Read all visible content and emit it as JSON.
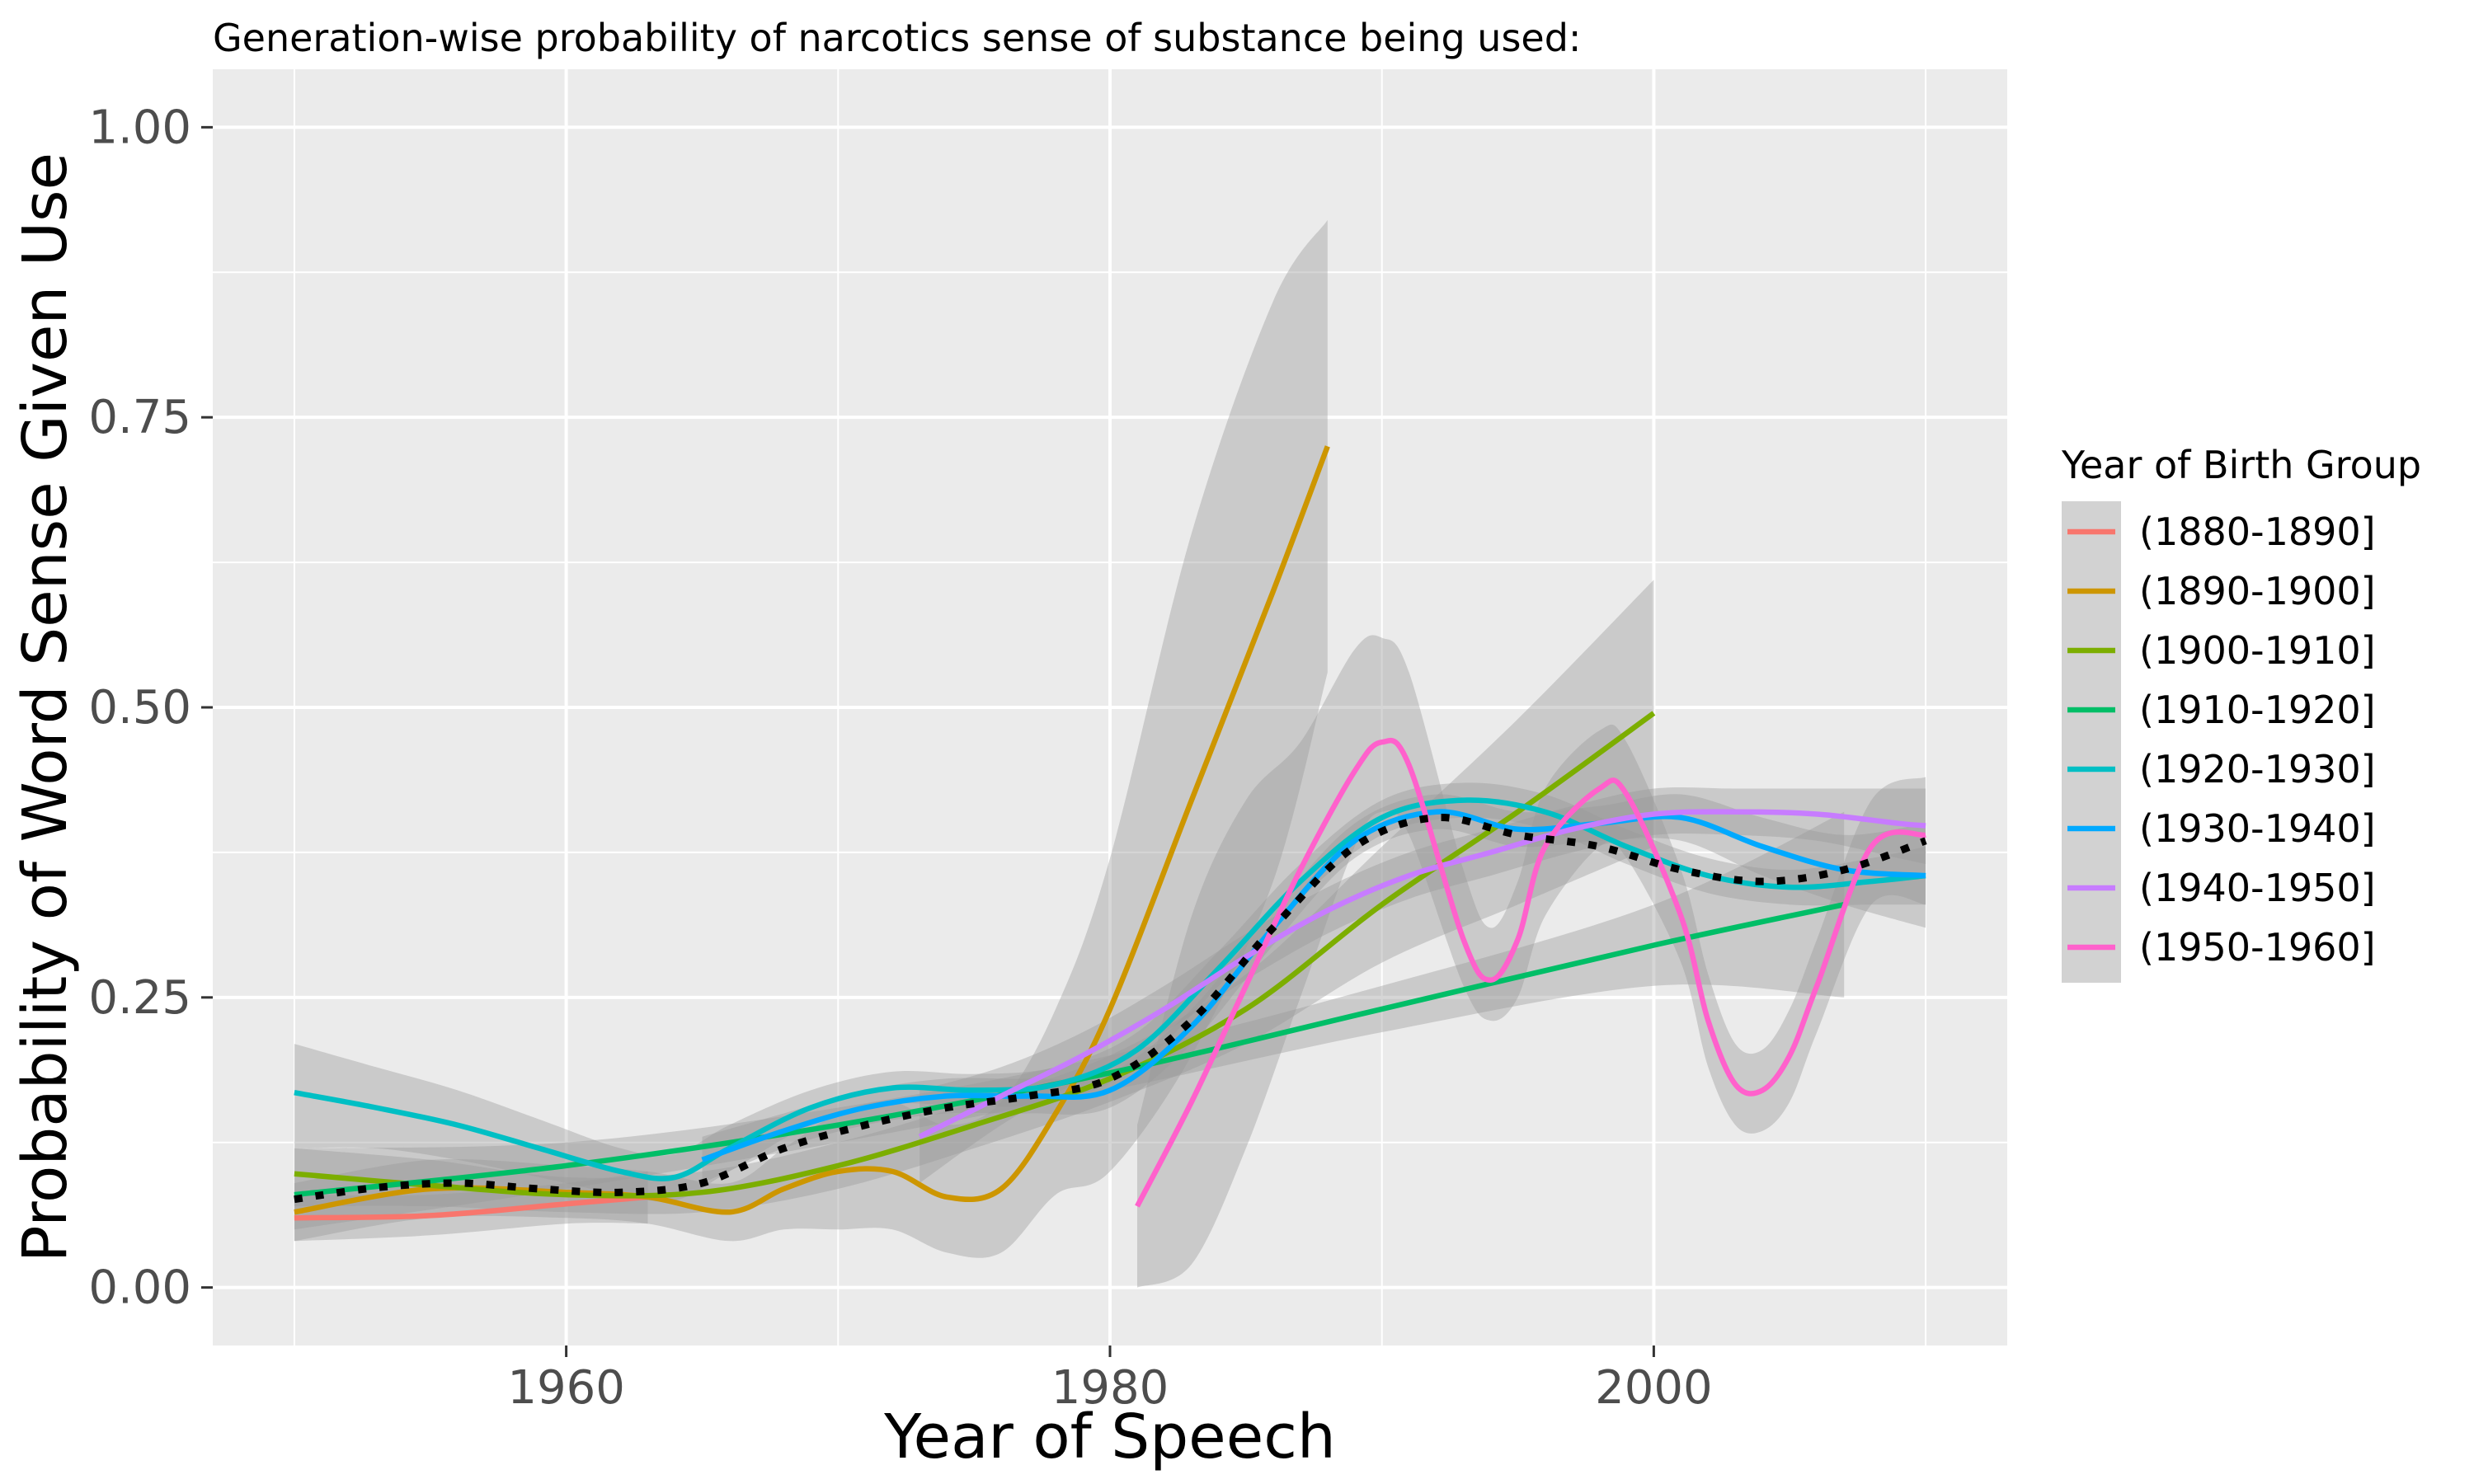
{
  "chart_data": {
    "type": "line",
    "title": "Generation-wise probability of narcotics sense of substance being used:",
    "xlabel": "Year of Speech",
    "ylabel": "Probability of Word Sense Given Use",
    "xlim": [
      1947,
      2013
    ],
    "ylim": [
      -0.05,
      1.05
    ],
    "x_ticks": [
      1960,
      1980,
      2000
    ],
    "x_tick_labels": [
      "1960",
      "1980",
      "2000"
    ],
    "y_ticks": [
      0,
      0.25,
      0.5,
      0.75,
      1.0
    ],
    "y_tick_labels": [
      "0.00",
      "0.25",
      "0.50",
      "0.75",
      "1.00"
    ],
    "grid": true,
    "legend_position": "right",
    "legend_title": "Year of Birth Group",
    "series": [
      {
        "name": "(1880-1890]",
        "color": "#F8766D",
        "x": [
          1950,
          1955,
          1960,
          1963
        ],
        "y": [
          0.06,
          0.062,
          0.072,
          0.078
        ],
        "band": [
          [
            0.04,
            0.08
          ],
          [
            0.045,
            0.08
          ],
          [
            0.055,
            0.09
          ],
          [
            0.055,
            0.1
          ]
        ]
      },
      {
        "name": "(1890-1900]",
        "color": "#CD9600",
        "x": [
          1950,
          1955,
          1960,
          1963,
          1966,
          1968,
          1970,
          1972,
          1974,
          1976,
          1978,
          1980,
          1983,
          1986,
          1988
        ],
        "y": [
          0.065,
          0.085,
          0.082,
          0.078,
          0.065,
          0.085,
          0.1,
          0.1,
          0.078,
          0.085,
          0.15,
          0.24,
          0.42,
          0.6,
          0.725
        ],
        "band": [
          [
            0.04,
            0.09
          ],
          [
            0.06,
            0.11
          ],
          [
            0.06,
            0.105
          ],
          [
            0.055,
            0.1
          ],
          [
            0.04,
            0.09
          ],
          [
            0.05,
            0.12
          ],
          [
            0.05,
            0.15
          ],
          [
            0.05,
            0.16
          ],
          [
            0.03,
            0.14
          ],
          [
            0.03,
            0.16
          ],
          [
            0.08,
            0.24
          ],
          [
            0.1,
            0.37
          ],
          [
            0.2,
            0.65
          ],
          [
            0.35,
            0.85
          ],
          [
            0.53,
            0.92
          ]
        ]
      },
      {
        "name": "(1900-1910]",
        "color": "#7CAE00",
        "x": [
          1950,
          1955,
          1960,
          1965,
          1970,
          1975,
          1980,
          1985,
          1990,
          1995,
          2000
        ],
        "y": [
          0.098,
          0.088,
          0.08,
          0.082,
          0.105,
          0.14,
          0.18,
          0.24,
          0.33,
          0.41,
          0.495
        ],
        "band": [
          [
            0.07,
            0.12
          ],
          [
            0.07,
            0.11
          ],
          [
            0.065,
            0.095
          ],
          [
            0.065,
            0.1
          ],
          [
            0.085,
            0.125
          ],
          [
            0.12,
            0.16
          ],
          [
            0.16,
            0.2
          ],
          [
            0.21,
            0.27
          ],
          [
            0.28,
            0.38
          ],
          [
            0.33,
            0.49
          ],
          [
            0.38,
            0.61
          ]
        ]
      },
      {
        "name": "(1910-1920]",
        "color": "#00BE67",
        "x": [
          1950,
          1960,
          1970,
          1980,
          1990,
          2000,
          2007
        ],
        "y": [
          0.08,
          0.105,
          0.14,
          0.185,
          0.24,
          0.295,
          0.33
        ],
        "band": [
          [
            0.05,
            0.12
          ],
          [
            0.085,
            0.125
          ],
          [
            0.125,
            0.155
          ],
          [
            0.17,
            0.2
          ],
          [
            0.22,
            0.26
          ],
          [
            0.26,
            0.33
          ],
          [
            0.25,
            0.41
          ]
        ]
      },
      {
        "name": "(1920-1930]",
        "color": "#00BFC4",
        "x": [
          1950,
          1953,
          1956,
          1959,
          1962,
          1964,
          1966,
          1969,
          1972,
          1975,
          1978,
          1981,
          1984,
          1987,
          1990,
          1993,
          1996,
          1999,
          2002,
          2005,
          2008,
          2010
        ],
        "y": [
          0.168,
          0.155,
          0.14,
          0.12,
          0.1,
          0.095,
          0.12,
          0.155,
          0.172,
          0.17,
          0.175,
          0.205,
          0.275,
          0.35,
          0.405,
          0.42,
          0.41,
          0.38,
          0.355,
          0.345,
          0.35,
          0.355
        ],
        "band": [
          [
            0.12,
            0.21
          ],
          [
            0.12,
            0.19
          ],
          [
            0.11,
            0.17
          ],
          [
            0.095,
            0.145
          ],
          [
            0.08,
            0.12
          ],
          [
            0.075,
            0.115
          ],
          [
            0.1,
            0.14
          ],
          [
            0.14,
            0.17
          ],
          [
            0.158,
            0.186
          ],
          [
            0.156,
            0.184
          ],
          [
            0.16,
            0.19
          ],
          [
            0.19,
            0.22
          ],
          [
            0.26,
            0.29
          ],
          [
            0.335,
            0.365
          ],
          [
            0.39,
            0.42
          ],
          [
            0.405,
            0.435
          ],
          [
            0.395,
            0.425
          ],
          [
            0.365,
            0.395
          ],
          [
            0.34,
            0.37
          ],
          [
            0.33,
            0.36
          ],
          [
            0.33,
            0.37
          ],
          [
            0.33,
            0.38
          ]
        ]
      },
      {
        "name": "(1930-1940]",
        "color": "#00A9FF",
        "x": [
          1965,
          1968,
          1971,
          1974,
          1977,
          1980,
          1983,
          1986,
          1989,
          1992,
          1995,
          1998,
          2001,
          2004,
          2007,
          2010
        ],
        "y": [
          0.11,
          0.135,
          0.155,
          0.165,
          0.165,
          0.17,
          0.225,
          0.31,
          0.385,
          0.41,
          0.395,
          0.4,
          0.405,
          0.38,
          0.36,
          0.355
        ],
        "band": [
          [
            0.09,
            0.13
          ],
          [
            0.12,
            0.15
          ],
          [
            0.14,
            0.17
          ],
          [
            0.15,
            0.18
          ],
          [
            0.15,
            0.18
          ],
          [
            0.155,
            0.185
          ],
          [
            0.21,
            0.24
          ],
          [
            0.295,
            0.325
          ],
          [
            0.37,
            0.4
          ],
          [
            0.395,
            0.425
          ],
          [
            0.38,
            0.41
          ],
          [
            0.385,
            0.415
          ],
          [
            0.385,
            0.425
          ],
          [
            0.355,
            0.405
          ],
          [
            0.33,
            0.39
          ],
          [
            0.31,
            0.4
          ]
        ]
      },
      {
        "name": "(1940-1950]",
        "color": "#C77CFF",
        "x": [
          1973,
          1976,
          1979,
          1982,
          1985,
          1988,
          1991,
          1994,
          1997,
          2000,
          2003,
          2006,
          2009,
          2010
        ],
        "y": [
          0.13,
          0.165,
          0.2,
          0.24,
          0.285,
          0.325,
          0.355,
          0.375,
          0.395,
          0.408,
          0.41,
          0.408,
          0.4,
          0.398
        ],
        "band": [
          [
            0.09,
            0.17
          ],
          [
            0.14,
            0.19
          ],
          [
            0.18,
            0.22
          ],
          [
            0.22,
            0.26
          ],
          [
            0.265,
            0.305
          ],
          [
            0.305,
            0.345
          ],
          [
            0.335,
            0.375
          ],
          [
            0.355,
            0.395
          ],
          [
            0.375,
            0.415
          ],
          [
            0.39,
            0.43
          ],
          [
            0.39,
            0.43
          ],
          [
            0.385,
            0.43
          ],
          [
            0.37,
            0.43
          ],
          [
            0.365,
            0.43
          ]
        ]
      },
      {
        "name": "(1950-1960]",
        "color": "#FF61CC",
        "x": [
          1981,
          1983,
          1985,
          1987,
          1989,
          1990,
          1991,
          1993,
          1994,
          1995,
          1996,
          1998,
          1999,
          2001,
          2002,
          2003,
          2004,
          2005,
          2006,
          2008,
          2010
        ],
        "y": [
          0.07,
          0.16,
          0.26,
          0.36,
          0.445,
          0.47,
          0.45,
          0.3,
          0.265,
          0.3,
          0.38,
          0.43,
          0.425,
          0.32,
          0.23,
          0.175,
          0.17,
          0.2,
          0.26,
          0.38,
          0.39
        ],
        "band": [
          [
            0.0,
            0.14
          ],
          [
            0.02,
            0.32
          ],
          [
            0.12,
            0.42
          ],
          [
            0.25,
            0.47
          ],
          [
            0.38,
            0.55
          ],
          [
            0.41,
            0.56
          ],
          [
            0.39,
            0.53
          ],
          [
            0.26,
            0.36
          ],
          [
            0.23,
            0.31
          ],
          [
            0.25,
            0.35
          ],
          [
            0.32,
            0.43
          ],
          [
            0.38,
            0.48
          ],
          [
            0.37,
            0.47
          ],
          [
            0.28,
            0.36
          ],
          [
            0.19,
            0.27
          ],
          [
            0.14,
            0.21
          ],
          [
            0.135,
            0.205
          ],
          [
            0.16,
            0.24
          ],
          [
            0.22,
            0.3
          ],
          [
            0.33,
            0.42
          ],
          [
            0.33,
            0.44
          ]
        ]
      },
      {
        "name": "",
        "color": "#000000",
        "dotted": true,
        "x": [
          1950,
          1953,
          1956,
          1959,
          1962,
          1965,
          1968,
          1971,
          1974,
          1977,
          1980,
          1983,
          1986,
          1989,
          1992,
          1995,
          1998,
          2001,
          2004,
          2007,
          2010
        ],
        "y": [
          0.076,
          0.086,
          0.09,
          0.085,
          0.082,
          0.09,
          0.12,
          0.14,
          0.155,
          0.165,
          0.18,
          0.23,
          0.31,
          0.38,
          0.405,
          0.39,
          0.38,
          0.36,
          0.35,
          0.36,
          0.385
        ]
      }
    ]
  }
}
